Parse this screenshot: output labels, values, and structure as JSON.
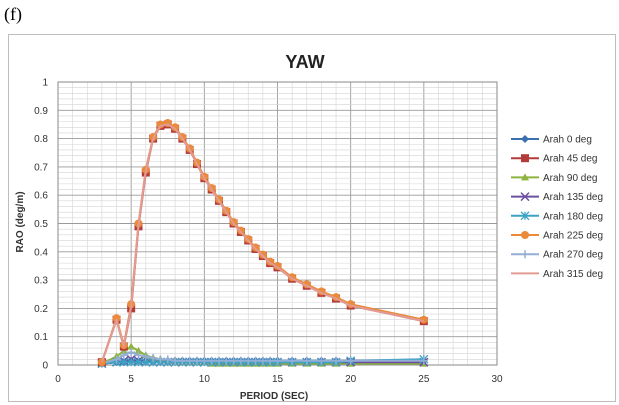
{
  "panel_label": "(f)",
  "chart_data": {
    "type": "line",
    "title": "YAW",
    "xlabel": "PERIOD (SEC)",
    "ylabel": "RAO (deg/m)",
    "xlim": [
      0,
      30
    ],
    "ylim": [
      0,
      1
    ],
    "x_ticks": [
      "0",
      "5",
      "10",
      "15",
      "20",
      "25",
      "30"
    ],
    "y_ticks": [
      "0",
      "0.1",
      "0.2",
      "0.3",
      "0.4",
      "0.5",
      "0.6",
      "0.7",
      "0.8",
      "0.9",
      "1"
    ],
    "grid": true,
    "legend_position": "right",
    "x": [
      3,
      4,
      4.5,
      5,
      5.5,
      6,
      6.5,
      7,
      7.5,
      8,
      8.5,
      9,
      9.5,
      10,
      10.5,
      11,
      11.5,
      12,
      12.5,
      13,
      13.5,
      14,
      14.5,
      15,
      16,
      17,
      18,
      19,
      20,
      25
    ],
    "series": [
      {
        "name": "Arah 0 deg",
        "color": "#3a6fb0",
        "marker": "diamond",
        "values": [
          0.005,
          0.01,
          0.01,
          0.015,
          0.015,
          0.015,
          0.015,
          0.015,
          0.015,
          0.015,
          0.015,
          0.015,
          0.015,
          0.015,
          0.015,
          0.015,
          0.015,
          0.015,
          0.015,
          0.015,
          0.015,
          0.015,
          0.015,
          0.015,
          0.015,
          0.015,
          0.015,
          0.015,
          0.015,
          0.015
        ]
      },
      {
        "name": "Arah 45 deg",
        "color": "#b33c3a",
        "marker": "square",
        "values": [
          0.01,
          0.16,
          0.065,
          0.2,
          0.49,
          0.68,
          0.8,
          0.845,
          0.85,
          0.835,
          0.8,
          0.76,
          0.71,
          0.66,
          0.62,
          0.58,
          0.54,
          0.5,
          0.47,
          0.44,
          0.41,
          0.385,
          0.36,
          0.345,
          0.305,
          0.28,
          0.255,
          0.235,
          0.21,
          0.155
        ]
      },
      {
        "name": "Arah 90 deg",
        "color": "#8db43e",
        "marker": "triangle",
        "values": [
          0.005,
          0.03,
          0.05,
          0.065,
          0.05,
          0.035,
          0.025,
          0.02,
          0.015,
          0.015,
          0.01,
          0.01,
          0.01,
          0.01,
          0.005,
          0.005,
          0.005,
          0.005,
          0.005,
          0.005,
          0.005,
          0.005,
          0.005,
          0.005,
          0.005,
          0.005,
          0.005,
          0.005,
          0.005,
          0.005
        ]
      },
      {
        "name": "Arah 135 deg",
        "color": "#6d4fa0",
        "marker": "x",
        "values": [
          0.005,
          0.01,
          0.015,
          0.02,
          0.015,
          0.01,
          0.01,
          0.01,
          0.01,
          0.01,
          0.01,
          0.01,
          0.01,
          0.01,
          0.01,
          0.01,
          0.01,
          0.01,
          0.01,
          0.01,
          0.01,
          0.01,
          0.01,
          0.01,
          0.01,
          0.01,
          0.01,
          0.01,
          0.01,
          0.01
        ]
      },
      {
        "name": "Arah 180 deg",
        "color": "#3ba3c4",
        "marker": "star",
        "values": [
          0.005,
          0.01,
          0.01,
          0.01,
          0.01,
          0.01,
          0.01,
          0.01,
          0.01,
          0.01,
          0.01,
          0.01,
          0.01,
          0.01,
          0.01,
          0.01,
          0.01,
          0.01,
          0.01,
          0.01,
          0.01,
          0.01,
          0.01,
          0.01,
          0.01,
          0.01,
          0.01,
          0.01,
          0.015,
          0.02
        ]
      },
      {
        "name": "Arah 225 deg",
        "color": "#ea8a3a",
        "marker": "circle",
        "values": [
          0.01,
          0.165,
          0.07,
          0.215,
          0.5,
          0.69,
          0.805,
          0.85,
          0.855,
          0.84,
          0.805,
          0.765,
          0.715,
          0.665,
          0.625,
          0.585,
          0.545,
          0.505,
          0.475,
          0.445,
          0.415,
          0.39,
          0.365,
          0.35,
          0.31,
          0.285,
          0.26,
          0.24,
          0.215,
          0.16
        ]
      },
      {
        "name": "Arah 270 deg",
        "color": "#94aed6",
        "marker": "plus",
        "values": [
          0.005,
          0.02,
          0.035,
          0.045,
          0.035,
          0.03,
          0.025,
          0.02,
          0.02,
          0.015,
          0.015,
          0.015,
          0.015,
          0.015,
          0.015,
          0.015,
          0.015,
          0.015,
          0.015,
          0.015,
          0.015,
          0.015,
          0.015,
          0.015,
          0.015,
          0.015,
          0.015,
          0.015,
          0.015,
          0.015
        ]
      },
      {
        "name": "Arah 315 deg",
        "color": "#e29a94",
        "marker": "none",
        "values": [
          0.01,
          0.16,
          0.065,
          0.205,
          0.495,
          0.685,
          0.8,
          0.845,
          0.85,
          0.835,
          0.8,
          0.76,
          0.71,
          0.66,
          0.62,
          0.58,
          0.54,
          0.5,
          0.47,
          0.44,
          0.41,
          0.385,
          0.36,
          0.345,
          0.305,
          0.28,
          0.255,
          0.235,
          0.21,
          0.155
        ]
      }
    ]
  }
}
